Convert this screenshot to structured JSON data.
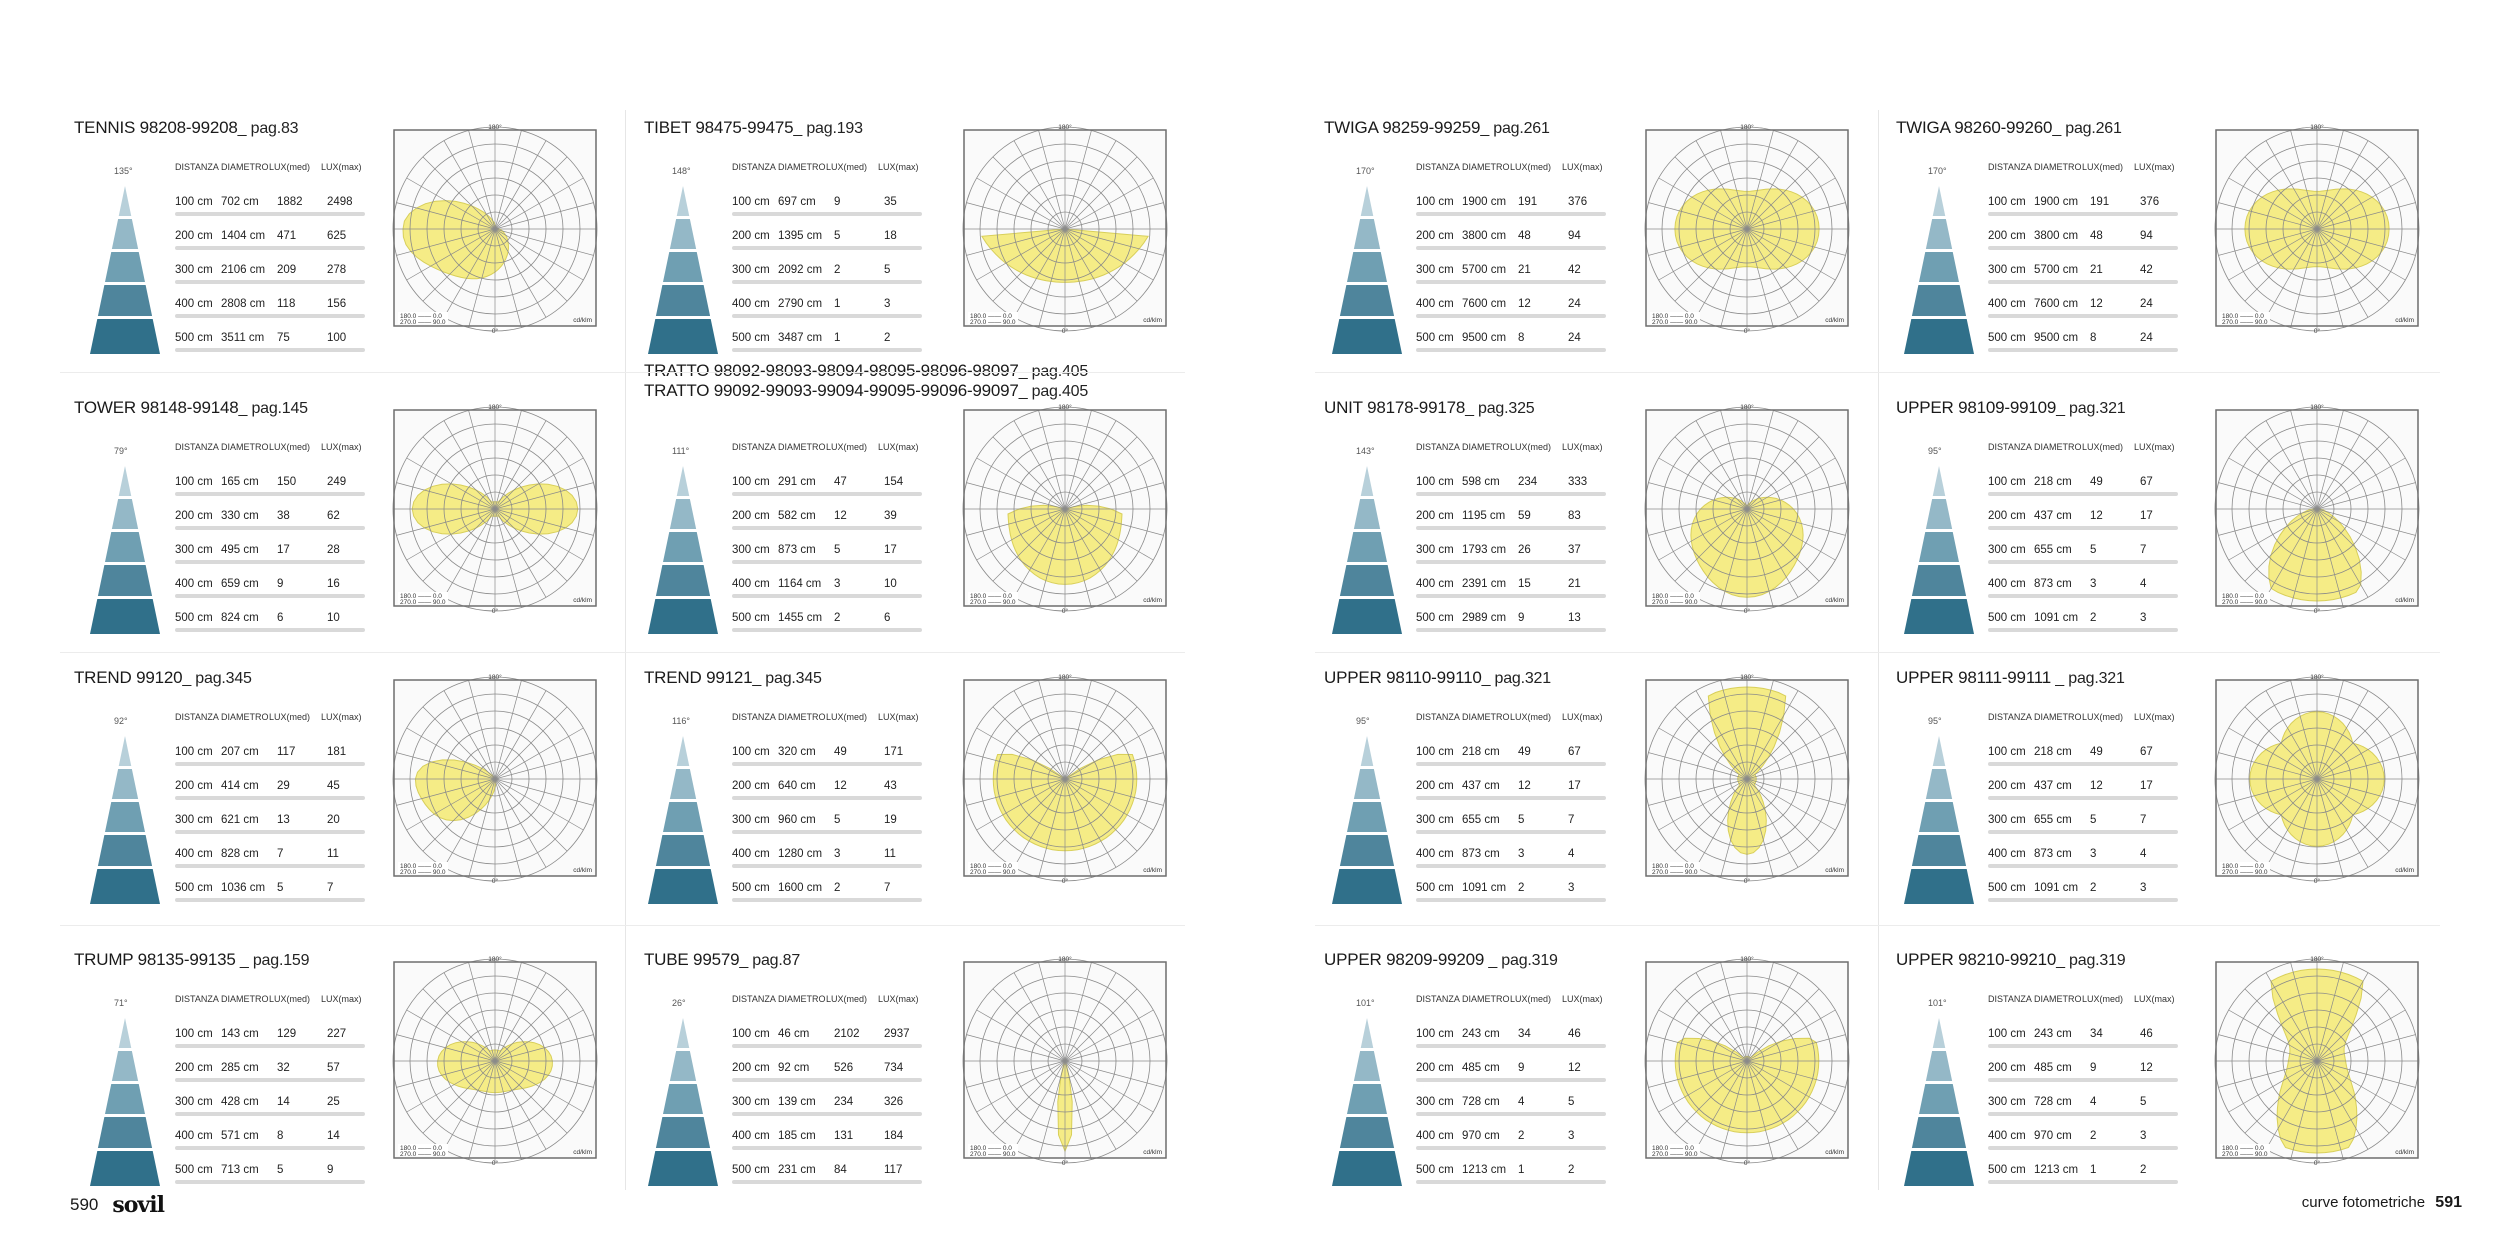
{
  "page": {
    "left_page_number": "590",
    "right_page_number": "591",
    "brand": "sovil",
    "section_label": "curve fotometriche"
  },
  "table_headers": {
    "distanza": "DISTANZA",
    "diametro": "DIAMETRO",
    "lux_med": "LUX(med)",
    "lux_max": "LUX(max)"
  },
  "chart_labels": {
    "top": "180°",
    "bottom": "0°",
    "left": "90°",
    "right": "90°",
    "legend1": "180.0 —— 0.0",
    "legend2": "270.0 —— 90.0",
    "unit": "cd/klm"
  },
  "colors": {
    "beam": "#f5ec86",
    "beam_stroke": "#d8cf5a",
    "grid": "#8a8a8a",
    "cone_top": "#b9d1db",
    "cone_bottom": "#2f6e87"
  },
  "products": [
    {
      "name": "TENNIS 98208-99208",
      "page": "_ pag.83",
      "angle": "135°",
      "beam": "tennis",
      "rows": [
        [
          "100 cm",
          "702 cm",
          "1882",
          "2498"
        ],
        [
          "200 cm",
          "1404 cm",
          "471",
          "625"
        ],
        [
          "300 cm",
          "2106 cm",
          "209",
          "278"
        ],
        [
          "400 cm",
          "2808 cm",
          "118",
          "156"
        ],
        [
          "500 cm",
          "3511 cm",
          "75",
          "100"
        ]
      ]
    },
    {
      "name": "TIBET 98475-99475",
      "page": "_ pag.193",
      "angle": "148°",
      "beam": "tibet",
      "rows": [
        [
          "100 cm",
          "697 cm",
          "9",
          "35"
        ],
        [
          "200 cm",
          "1395 cm",
          "5",
          "18"
        ],
        [
          "300 cm",
          "2092 cm",
          "2",
          "5"
        ],
        [
          "400 cm",
          "2790 cm",
          "1",
          "3"
        ],
        [
          "500 cm",
          "3487 cm",
          "1",
          "2"
        ]
      ]
    },
    {
      "name": "TWIGA 98259-99259",
      "page": "_ pag.261",
      "angle": "170°",
      "beam": "twiga1",
      "rows": [
        [
          "100 cm",
          "1900 cm",
          "191",
          "376"
        ],
        [
          "200 cm",
          "3800 cm",
          "48",
          "94"
        ],
        [
          "300 cm",
          "5700 cm",
          "21",
          "42"
        ],
        [
          "400 cm",
          "7600 cm",
          "12",
          "24"
        ],
        [
          "500 cm",
          "9500 cm",
          "8",
          "24"
        ]
      ]
    },
    {
      "name": "TWIGA 98260-99260",
      "page": "_ pag.261",
      "angle": "170°",
      "beam": "twiga2",
      "rows": [
        [
          "100 cm",
          "1900 cm",
          "191",
          "376"
        ],
        [
          "200 cm",
          "3800 cm",
          "48",
          "94"
        ],
        [
          "300 cm",
          "5700 cm",
          "21",
          "42"
        ],
        [
          "400 cm",
          "7600 cm",
          "12",
          "24"
        ],
        [
          "500 cm",
          "9500 cm",
          "8",
          "24"
        ]
      ]
    },
    {
      "name": "TOWER 98148-99148",
      "page": "_ pag.145",
      "angle": "79°",
      "beam": "tower",
      "rows": [
        [
          "100 cm",
          "165 cm",
          "150",
          "249"
        ],
        [
          "200 cm",
          "330 cm",
          "38",
          "62"
        ],
        [
          "300 cm",
          "495 cm",
          "17",
          "28"
        ],
        [
          "400 cm",
          "659 cm",
          "9",
          "16"
        ],
        [
          "500 cm",
          "824 cm",
          "6",
          "10"
        ]
      ]
    },
    {
      "name": "TRATTO  98092-98093-98094-98095-98096-98097",
      "name2": "TRATTO  99092-99093-99094-99095-99096-99097",
      "page": "_ pag.405",
      "page2": "_ pag.405",
      "angle": "111°",
      "beam": "tratto",
      "rows": [
        [
          "100 cm",
          "291 cm",
          "47",
          "154"
        ],
        [
          "200 cm",
          "582 cm",
          "12",
          "39"
        ],
        [
          "300 cm",
          "873 cm",
          "5",
          "17"
        ],
        [
          "400 cm",
          "1164 cm",
          "3",
          "10"
        ],
        [
          "500 cm",
          "1455 cm",
          "2",
          "6"
        ]
      ]
    },
    {
      "name": "UNIT 98178-99178",
      "page": "_ pag.325",
      "angle": "143°",
      "beam": "unit",
      "rows": [
        [
          "100 cm",
          "598 cm",
          "234",
          "333"
        ],
        [
          "200 cm",
          "1195 cm",
          "59",
          "83"
        ],
        [
          "300 cm",
          "1793 cm",
          "26",
          "37"
        ],
        [
          "400 cm",
          "2391 cm",
          "15",
          "21"
        ],
        [
          "500 cm",
          "2989 cm",
          "9",
          "13"
        ]
      ]
    },
    {
      "name": "UPPER 98109-99109",
      "page": "_ pag.321",
      "angle": "95°",
      "beam": "upper109",
      "rows": [
        [
          "100 cm",
          "218 cm",
          "49",
          "67"
        ],
        [
          "200 cm",
          "437 cm",
          "12",
          "17"
        ],
        [
          "300 cm",
          "655 cm",
          "5",
          "7"
        ],
        [
          "400 cm",
          "873 cm",
          "3",
          "4"
        ],
        [
          "500 cm",
          "1091 cm",
          "2",
          "3"
        ]
      ]
    },
    {
      "name": "TREND 99120",
      "page": "_ pag.345",
      "angle": "92°",
      "beam": "trend120",
      "rows": [
        [
          "100 cm",
          "207 cm",
          "117",
          "181"
        ],
        [
          "200 cm",
          "414 cm",
          "29",
          "45"
        ],
        [
          "300 cm",
          "621 cm",
          "13",
          "20"
        ],
        [
          "400 cm",
          "828 cm",
          "7",
          "11"
        ],
        [
          "500 cm",
          "1036 cm",
          "5",
          "7"
        ]
      ]
    },
    {
      "name": "TREND 99121",
      "page": "_ pag.345",
      "angle": "116°",
      "beam": "trend121",
      "rows": [
        [
          "100 cm",
          "320 cm",
          "49",
          "171"
        ],
        [
          "200 cm",
          "640 cm",
          "12",
          "43"
        ],
        [
          "300 cm",
          "960 cm",
          "5",
          "19"
        ],
        [
          "400 cm",
          "1280 cm",
          "3",
          "11"
        ],
        [
          "500 cm",
          "1600 cm",
          "2",
          "7"
        ]
      ]
    },
    {
      "name": "UPPER 98110-99110",
      "page": "_ pag.321",
      "angle": "95°",
      "beam": "upper110",
      "rows": [
        [
          "100 cm",
          "218 cm",
          "49",
          "67"
        ],
        [
          "200 cm",
          "437 cm",
          "12",
          "17"
        ],
        [
          "300 cm",
          "655 cm",
          "5",
          "7"
        ],
        [
          "400 cm",
          "873 cm",
          "3",
          "4"
        ],
        [
          "500 cm",
          "1091 cm",
          "2",
          "3"
        ]
      ]
    },
    {
      "name": "UPPER 98111-99111",
      "page": " _ pag.321",
      "angle": "95°",
      "beam": "upper111",
      "rows": [
        [
          "100 cm",
          "218 cm",
          "49",
          "67"
        ],
        [
          "200 cm",
          "437 cm",
          "12",
          "17"
        ],
        [
          "300 cm",
          "655 cm",
          "5",
          "7"
        ],
        [
          "400 cm",
          "873 cm",
          "3",
          "4"
        ],
        [
          "500 cm",
          "1091 cm",
          "2",
          "3"
        ]
      ]
    },
    {
      "name": "TRUMP 98135-99135",
      "page": " _ pag.159",
      "angle": "71°",
      "beam": "trump",
      "rows": [
        [
          "100 cm",
          "143 cm",
          "129",
          "227"
        ],
        [
          "200 cm",
          "285 cm",
          "32",
          "57"
        ],
        [
          "300 cm",
          "428 cm",
          "14",
          "25"
        ],
        [
          "400 cm",
          "571 cm",
          "8",
          "14"
        ],
        [
          "500 cm",
          "713 cm",
          "5",
          "9"
        ]
      ]
    },
    {
      "name": "TUBE 99579",
      "page": "_ pag.87",
      "angle": "26°",
      "beam": "tube",
      "rows": [
        [
          "100 cm",
          "46 cm",
          "2102",
          "2937"
        ],
        [
          "200 cm",
          "92 cm",
          "526",
          "734"
        ],
        [
          "300 cm",
          "139 cm",
          "234",
          "326"
        ],
        [
          "400 cm",
          "185 cm",
          "131",
          "184"
        ],
        [
          "500 cm",
          "231 cm",
          "84",
          "117"
        ]
      ]
    },
    {
      "name": "UPPER 98209-99209",
      "page": " _ pag.319",
      "angle": "101°",
      "beam": "upper209",
      "rows": [
        [
          "100 cm",
          "243 cm",
          "34",
          "46"
        ],
        [
          "200 cm",
          "485 cm",
          "9",
          "12"
        ],
        [
          "300 cm",
          "728 cm",
          "4",
          "5"
        ],
        [
          "400 cm",
          "970 cm",
          "2",
          "3"
        ],
        [
          "500 cm",
          "1213 cm",
          "1",
          "2"
        ]
      ]
    },
    {
      "name": "UPPER 98210-99210",
      "page": "_ pag.319",
      "angle": "101°",
      "beam": "upper210",
      "rows": [
        [
          "100 cm",
          "243 cm",
          "34",
          "46"
        ],
        [
          "200 cm",
          "485 cm",
          "9",
          "12"
        ],
        [
          "300 cm",
          "728 cm",
          "4",
          "5"
        ],
        [
          "400 cm",
          "970 cm",
          "2",
          "3"
        ],
        [
          "500 cm",
          "1213 cm",
          "1",
          "2"
        ]
      ]
    }
  ]
}
